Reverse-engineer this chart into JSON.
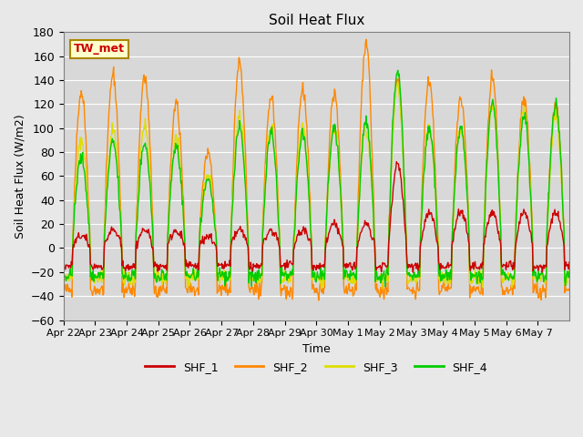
{
  "title": "Soil Heat Flux",
  "ylabel": "Soil Heat Flux (W/m2)",
  "xlabel": "Time",
  "ylim": [
    -60,
    180
  ],
  "background_color": "#e8e8e8",
  "plot_bg_color": "#d8d8d8",
  "series_colors": {
    "SHF_1": "#cc0000",
    "SHF_2": "#ff8800",
    "SHF_3": "#dddd00",
    "SHF_4": "#00cc00"
  },
  "xtick_labels": [
    "Apr 22",
    "Apr 23",
    "Apr 24",
    "Apr 25",
    "Apr 26",
    "Apr 27",
    "Apr 28",
    "Apr 29",
    "Apr 30",
    "May 1",
    "May 2",
    "May 3",
    "May 4",
    "May 5",
    "May 6",
    "May 7"
  ],
  "ytick_values": [
    -60,
    -40,
    -20,
    0,
    20,
    40,
    60,
    80,
    100,
    120,
    140,
    160,
    180
  ],
  "annotation_text": "TW_met",
  "annotation_color": "#cc0000",
  "annotation_bg": "#ffffcc",
  "annotation_border": "#aa8800",
  "n_days": 16,
  "n_per_day": 48,
  "day_amplitudes_2": [
    130,
    145,
    143,
    120,
    80,
    155,
    127,
    133,
    130,
    170,
    140,
    140,
    125,
    141,
    125,
    120
  ],
  "day_amplitudes_3": [
    90,
    100,
    103,
    90,
    60,
    110,
    100,
    100,
    100,
    100,
    135,
    100,
    100,
    120,
    115,
    110
  ],
  "day_amplitudes_4": [
    75,
    88,
    88,
    85,
    55,
    100,
    95,
    95,
    100,
    105,
    148,
    100,
    100,
    120,
    110,
    120
  ],
  "day_amplitudes_1": [
    10,
    15,
    15,
    15,
    10,
    15,
    15,
    15,
    20,
    20,
    70,
    30,
    30,
    30,
    30,
    30
  ],
  "night_base_2": -35,
  "night_base_3": -25,
  "night_base_4": -23,
  "night_base_1": -15,
  "day_start": 0.28,
  "day_end": 0.85
}
